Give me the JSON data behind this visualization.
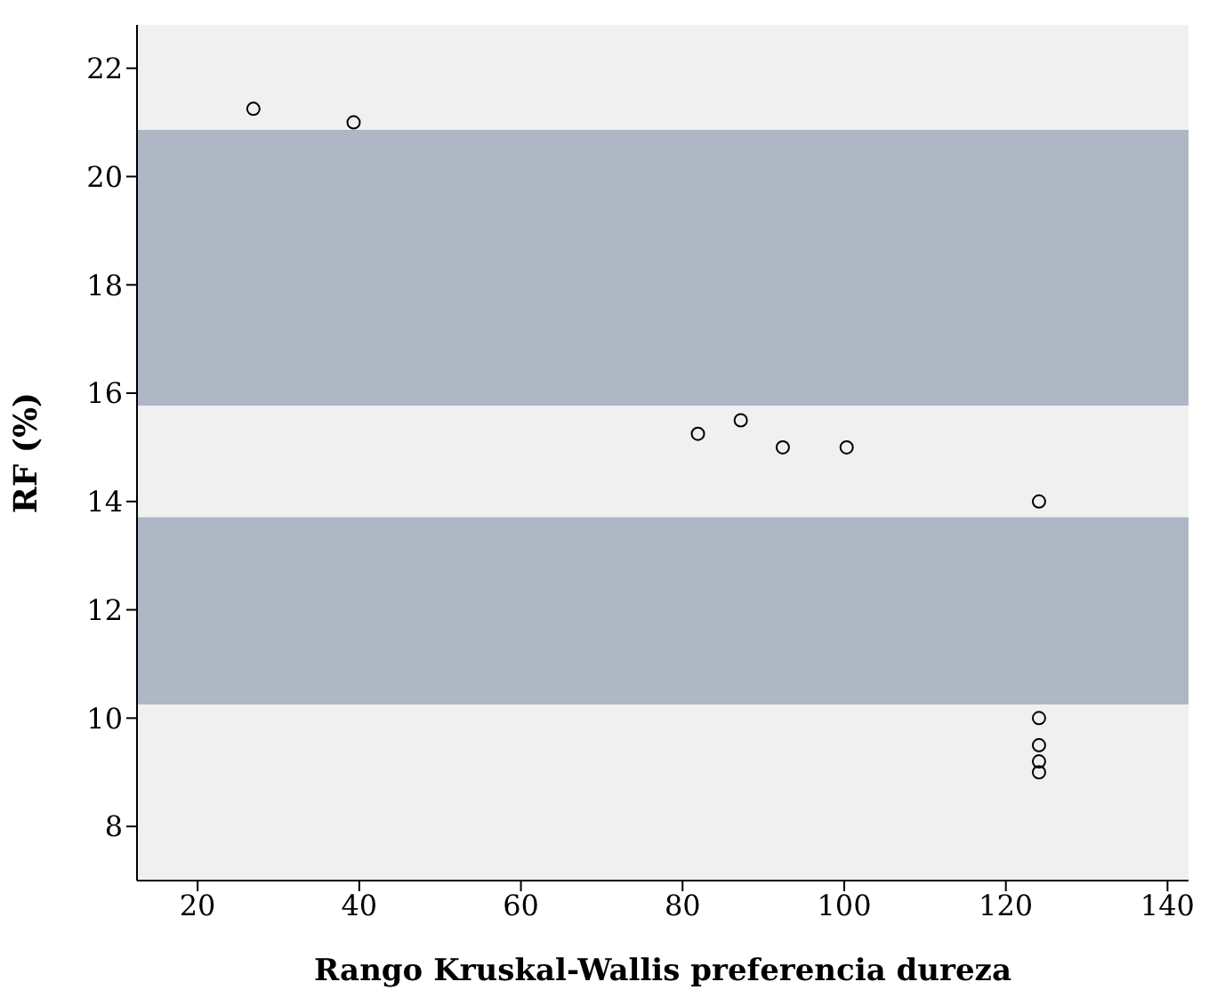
{
  "chart_data": {
    "type": "scatter",
    "xlabel": "Rango Kruskal-Wallis preferencia dureza",
    "ylabel": "RF (%)",
    "x": [
      26.9,
      39.3,
      81.9,
      87.2,
      92.4,
      100.3,
      124.1,
      124.1,
      124.1,
      124.1,
      124.1
    ],
    "values": [
      21.25,
      21.0,
      15.25,
      15.5,
      15.0,
      15.0,
      14.0,
      10.0,
      9.5,
      9.2,
      9.0
    ],
    "color": "#000000",
    "marker": "circle",
    "xlim": [
      12.5,
      142.6
    ],
    "xticks": [
      20,
      40,
      60,
      80,
      100,
      120,
      140
    ],
    "ylim": [
      7,
      22.8
    ],
    "yticks": [
      8,
      10,
      12,
      14,
      16,
      18,
      20,
      22
    ],
    "bands": [
      {
        "axis": "y",
        "from": 15.77,
        "to": 20.86,
        "color": "#afb7c5"
      },
      {
        "axis": "y",
        "from": 10.25,
        "to": 13.71,
        "color": "#afb7c5"
      }
    ]
  }
}
